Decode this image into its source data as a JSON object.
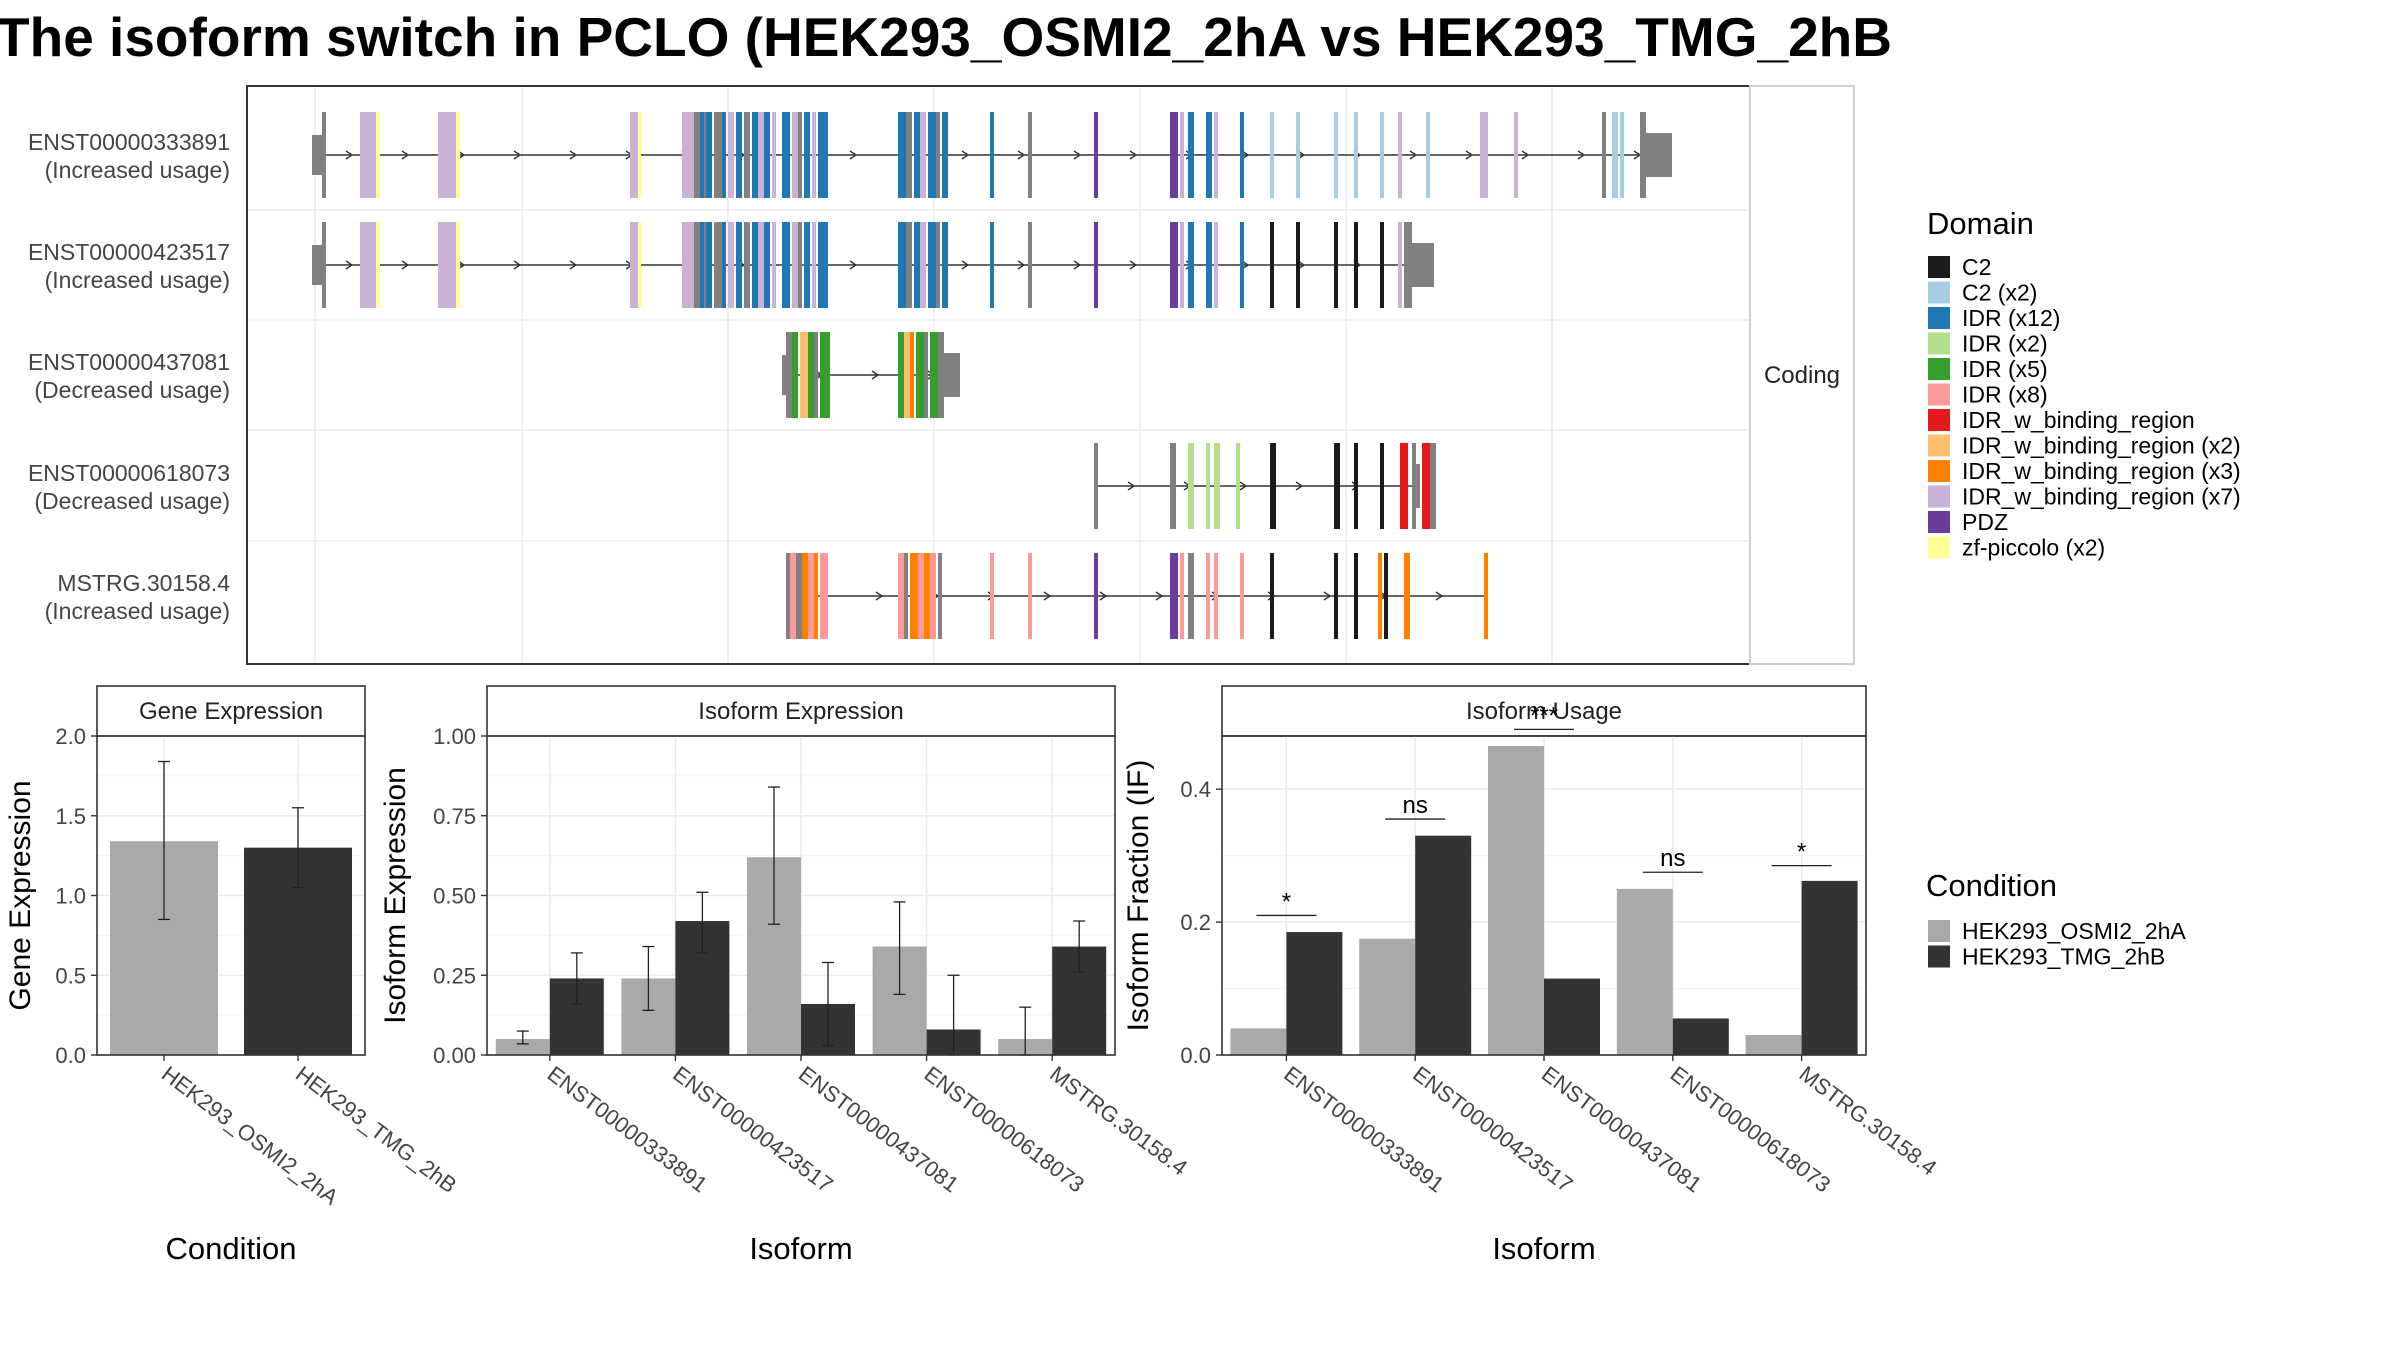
{
  "title": "The isoform switch in PCLO (HEK293_OSMI2_2hA vs HEK293_TMG_2hB",
  "structure": {
    "strip_label": "Coding",
    "isoforms": [
      {
        "name": "ENST00000333891",
        "usage": "(Increased usage)"
      },
      {
        "name": "ENST00000423517",
        "usage": "(Increased usage)"
      },
      {
        "name": "ENST00000437081",
        "usage": "(Decreased usage)"
      },
      {
        "name": "ENST00000618073",
        "usage": "(Decreased usage)"
      },
      {
        "name": "MSTRG.30158.4",
        "usage": "(Increased usage)"
      }
    ]
  },
  "legend_domain": {
    "title": "Domain",
    "items": [
      {
        "label": "C2",
        "color": "#1a1a1a"
      },
      {
        "label": "C2 (x2)",
        "color": "#a6cee3"
      },
      {
        "label": "IDR (x12)",
        "color": "#1f78b4"
      },
      {
        "label": "IDR (x2)",
        "color": "#b2df8a"
      },
      {
        "label": "IDR (x5)",
        "color": "#33a02c"
      },
      {
        "label": "IDR (x8)",
        "color": "#fb9a99"
      },
      {
        "label": "IDR_w_binding_region",
        "color": "#e31a1c"
      },
      {
        "label": "IDR_w_binding_region (x2)",
        "color": "#fdbf6f"
      },
      {
        "label": "IDR_w_binding_region (x3)",
        "color": "#ff7f00"
      },
      {
        "label": "IDR_w_binding_region (x7)",
        "color": "#cab2d6"
      },
      {
        "label": "PDZ",
        "color": "#6a3d9a"
      },
      {
        "label": "zf-piccolo (x2)",
        "color": "#ffff99"
      }
    ]
  },
  "legend_condition": {
    "title": "Condition",
    "items": [
      {
        "label": "HEK293_OSMI2_2hA",
        "color": "#a9a9a9"
      },
      {
        "label": "HEK293_TMG_2hB",
        "color": "#333333"
      }
    ]
  },
  "chart_data": [
    {
      "type": "bar",
      "title": "Gene Expression",
      "xlabel": "Condition",
      "ylabel": "Gene Expression",
      "ylim": [
        0,
        2.0
      ],
      "yticks": [
        0.0,
        0.5,
        1.0,
        1.5,
        2.0
      ],
      "ytick_labels": [
        "0.0",
        "0.5",
        "1.0",
        "1.5",
        "2.0"
      ],
      "categories": [
        "HEK293_OSMI2_2hA",
        "HEK293_TMG_2hB"
      ],
      "values": [
        1.34,
        1.3
      ],
      "error_low": [
        0.85,
        1.05
      ],
      "error_high": [
        1.84,
        1.55
      ]
    },
    {
      "type": "bar",
      "title": "Isoform Expression",
      "xlabel": "Isoform",
      "ylabel": "Isoform Expression",
      "ylim": [
        0,
        1.0
      ],
      "yticks": [
        0.0,
        0.25,
        0.5,
        0.75,
        1.0
      ],
      "ytick_labels": [
        "0.00",
        "0.25",
        "0.50",
        "0.75",
        "1.00"
      ],
      "categories": [
        "ENST00000333891",
        "ENST00000423517",
        "ENST00000437081",
        "ENST00000618073",
        "MSTRG.30158.4"
      ],
      "series": [
        {
          "name": "HEK293_OSMI2_2hA",
          "values": [
            0.05,
            0.24,
            0.62,
            0.34,
            0.05
          ],
          "error_low": [
            0.035,
            0.14,
            0.41,
            0.19,
            0.0
          ],
          "error_high": [
            0.075,
            0.34,
            0.84,
            0.48,
            0.15
          ]
        },
        {
          "name": "HEK293_TMG_2hB",
          "values": [
            0.24,
            0.42,
            0.16,
            0.08,
            0.34
          ],
          "error_low": [
            0.16,
            0.32,
            0.03,
            0.0,
            0.26
          ],
          "error_high": [
            0.32,
            0.51,
            0.29,
            0.25,
            0.42
          ]
        }
      ]
    },
    {
      "type": "bar",
      "title": "Isoform Usage",
      "xlabel": "Isoform",
      "ylabel": "Isoform Fraction (IF)",
      "ylim": [
        0,
        0.48
      ],
      "yticks": [
        0.0,
        0.2,
        0.4
      ],
      "ytick_labels": [
        "0.0",
        "0.2",
        "0.4"
      ],
      "categories": [
        "ENST00000333891",
        "ENST00000423517",
        "ENST00000437081",
        "ENST00000618073",
        "MSTRG.30158.4"
      ],
      "series": [
        {
          "name": "HEK293_OSMI2_2hA",
          "values": [
            0.04,
            0.175,
            0.465,
            0.25,
            0.03
          ]
        },
        {
          "name": "HEK293_TMG_2hB",
          "values": [
            0.185,
            0.33,
            0.115,
            0.055,
            0.262
          ]
        }
      ],
      "significance": [
        "*",
        "ns",
        "***",
        "ns",
        "*"
      ],
      "significance_level": [
        0.21,
        0.355,
        0.49,
        0.275,
        0.285
      ]
    }
  ]
}
